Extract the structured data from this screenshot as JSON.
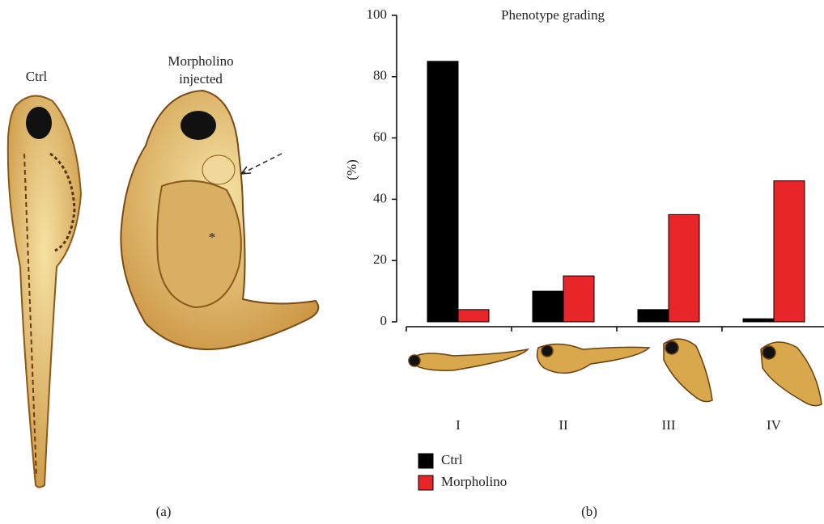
{
  "panel_a": {
    "ctrl_label": "Ctrl",
    "injected_label": [
      "Morpholino",
      "injected"
    ],
    "asterisk": "*",
    "caption": "(a)"
  },
  "chart_data": {
    "type": "bar",
    "title": "Phenotype grading",
    "y_label": "(%)",
    "caption": "(b)",
    "categories": [
      "I",
      "II",
      "III",
      "IV"
    ],
    "series": [
      {
        "name": "Ctrl",
        "color": "#000000",
        "values": [
          85,
          10,
          4,
          1
        ]
      },
      {
        "name": "Morpholino",
        "color": "#e8262a",
        "values": [
          4,
          15,
          35,
          46
        ]
      }
    ],
    "ylim": [
      0,
      100
    ],
    "yticks": [
      0,
      20,
      40,
      60,
      80,
      100
    ]
  }
}
